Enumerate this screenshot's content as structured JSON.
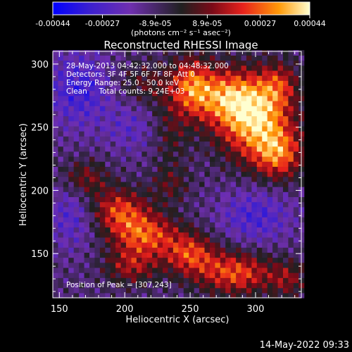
{
  "chart_data": {
    "type": "heatmap",
    "title": "Reconstructed RHESSI Image",
    "xlabel": "Heliocentric X (arcsec)",
    "ylabel": "Heliocentric Y (arcsec)",
    "xlim": [
      145,
      335
    ],
    "ylim": [
      115,
      310
    ],
    "x_ticks": [
      "150",
      "200",
      "250",
      "300"
    ],
    "x_tick_values": [
      150,
      200,
      250,
      300
    ],
    "y_ticks": [
      "150",
      "200",
      "250",
      "300"
    ],
    "y_tick_values": [
      150,
      200,
      250,
      300
    ],
    "colorbar": {
      "range": [
        -0.00044,
        0.00044
      ],
      "tick_labels": [
        "-0.00044",
        "-0.00027",
        "-8.9e-05",
        "8.9e-05",
        "0.00027",
        "0.00044"
      ],
      "tick_values": [
        -0.00044,
        -0.00027,
        -8.9e-05,
        8.9e-05,
        0.00027,
        0.00044
      ],
      "unit_label": "(photons cm⁻² s⁻¹ asec⁻²)",
      "colors": [
        "#0000ff",
        "#3a1fd0",
        "#6f2fb0",
        "#202020",
        "#7a0a18",
        "#e8221c",
        "#ff9a08",
        "#ffffd0"
      ]
    },
    "annotations": {
      "time": "28-May-2013 04:42:32.000 to 04:48:32.000",
      "detectors": "Detectors: 3F 4F 5F 6F 7F 8F, Att 0",
      "energy": "Energy Range: 25.0 - 50.0 keV",
      "clean": "Clean     Total counts: 9.24E+03",
      "peak": "Position of Peak = [307,243]"
    },
    "peak": [
      307,
      243
    ],
    "sources": [
      {
        "x": 300,
        "y": 255,
        "amp": 0.00045,
        "sx": 20,
        "sy": 22
      },
      {
        "x": 275,
        "y": 275,
        "amp": 0.00034,
        "sx": 22,
        "sy": 16
      },
      {
        "x": 318,
        "y": 228,
        "amp": 0.0003,
        "sx": 13,
        "sy": 14
      },
      {
        "x": 250,
        "y": 285,
        "amp": 0.00026,
        "sx": 11,
        "sy": 16
      },
      {
        "x": 318,
        "y": 285,
        "amp": 0.0002,
        "sx": 10,
        "sy": 12
      },
      {
        "x": 170,
        "y": 210,
        "amp": 0.0002,
        "sx": 12,
        "sy": 10
      },
      {
        "x": 195,
        "y": 185,
        "amp": 0.0003,
        "sx": 16,
        "sy": 12
      },
      {
        "x": 215,
        "y": 165,
        "amp": 0.00034,
        "sx": 18,
        "sy": 12
      },
      {
        "x": 205,
        "y": 140,
        "amp": 0.00022,
        "sx": 14,
        "sy": 10
      },
      {
        "x": 250,
        "y": 150,
        "amp": 0.0003,
        "sx": 14,
        "sy": 12
      },
      {
        "x": 285,
        "y": 135,
        "amp": 0.00034,
        "sx": 20,
        "sy": 12
      },
      {
        "x": 325,
        "y": 130,
        "amp": 0.00018,
        "sx": 10,
        "sy": 10
      },
      {
        "x": 235,
        "y": 205,
        "amp": 0.00014,
        "sx": 10,
        "sy": 10
      },
      {
        "x": 215,
        "y": 285,
        "amp": 0.00014,
        "sx": 14,
        "sy": 12
      },
      {
        "x": 235,
        "y": 245,
        "amp": 0.00012,
        "sx": 10,
        "sy": 18
      },
      {
        "x": 160,
        "y": 180,
        "amp": -0.00016,
        "sx": 14,
        "sy": 18
      },
      {
        "x": 165,
        "y": 280,
        "amp": -0.0002,
        "sx": 18,
        "sy": 22
      },
      {
        "x": 300,
        "y": 180,
        "amp": -0.00018,
        "sx": 20,
        "sy": 16
      },
      {
        "x": 205,
        "y": 250,
        "amp": -0.00012,
        "sx": 14,
        "sy": 14
      }
    ]
  },
  "footer": {
    "date": "14-May-2022 09:33"
  }
}
